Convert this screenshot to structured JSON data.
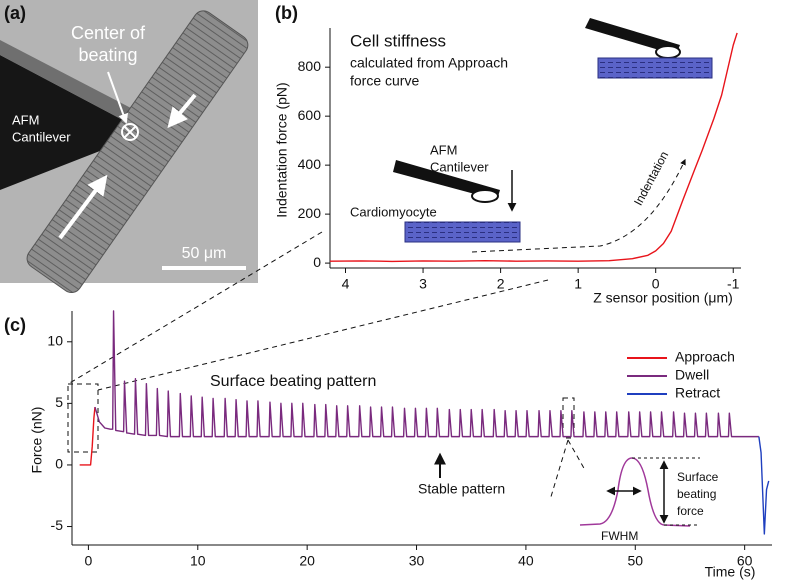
{
  "image_panel": {
    "label": "(a)",
    "center_label": [
      "Center of",
      "beating"
    ],
    "cantilever_label": [
      "AFM",
      "Cantilever"
    ],
    "scale_bar": "50 μm"
  },
  "chart_data": [
    {
      "label": "(b)",
      "type": "line",
      "title": "Cell stiffness",
      "subtitle": [
        "calculated from Approach",
        "force curve"
      ],
      "annotations": {
        "cantilever": [
          "AFM",
          "Cantilever"
        ],
        "cell": "Cardiomyocyte",
        "arrow": "Indentation"
      },
      "x_label": "Z sensor position (μm)",
      "y_label": "Indentation force (pN)",
      "xlim": [
        4.2,
        -1.1
      ],
      "xticks": [
        4,
        3,
        2,
        1,
        0,
        -1
      ],
      "ylim": [
        -20,
        960
      ],
      "yticks": [
        0,
        200,
        400,
        600,
        800
      ],
      "series": [
        {
          "color": "#e8141b",
          "x": [
            4.2,
            3.8,
            3.4,
            3.0,
            2.6,
            2.2,
            1.8,
            1.4,
            1.0,
            0.6,
            0.3,
            0.1,
            0,
            -0.1,
            -0.2,
            -0.35,
            -0.5,
            -0.6,
            -0.75,
            -0.85,
            -1.0,
            -1.05
          ],
          "values": [
            8,
            9,
            7,
            9,
            8,
            10,
            8,
            9,
            8,
            10,
            18,
            32,
            50,
            80,
            130,
            257,
            380,
            461,
            590,
            686,
            890,
            940
          ]
        }
      ]
    },
    {
      "label": "(c)",
      "type": "line",
      "title": "Surface beating pattern",
      "annotations": {
        "stable": "Stable pattern",
        "fwhm": "FWHM",
        "force": [
          "Surface",
          "beating",
          "force"
        ]
      },
      "x_label": "Time (s)",
      "y_label": "Force (nN)",
      "xlim": [
        -1.5,
        62.5
      ],
      "xticks": [
        0,
        10,
        20,
        30,
        40,
        50,
        60
      ],
      "ylim": [
        -6.5,
        12.5
      ],
      "yticks": [
        -5,
        0,
        5,
        10
      ],
      "legend": "upper right",
      "series": [
        {
          "name": "Approach",
          "color": "#e8141b",
          "x": [
            -0.8,
            0.2,
            0.35,
            0.5,
            0.6
          ],
          "values": [
            0,
            0,
            1.5,
            3.8,
            4.7
          ]
        },
        {
          "name": "Dwell",
          "color": "#7a2a7e",
          "x": [
            0.6,
            1.0,
            1.5,
            2.0,
            2.22,
            2.3,
            2.5,
            3.22,
            3.3,
            3.5,
            4.22,
            4.3,
            4.5,
            5.22,
            5.3,
            5.5,
            6.22,
            6.3,
            6.5,
            7.22,
            7.3,
            7.5,
            8.32,
            8.4,
            8.6,
            9.32,
            9.4,
            9.6,
            10.32,
            10.4,
            10.6,
            11.32,
            11.4,
            11.6,
            12.42,
            12.5,
            12.7,
            13.42,
            13.5,
            13.7,
            14.42,
            14.5,
            14.7,
            15.42,
            15.5,
            15.7,
            16.52,
            16.6,
            16.8,
            17.52,
            17.6,
            17.8,
            18.52,
            18.6,
            18.8,
            19.52,
            19.6,
            19.8,
            20.62,
            20.7,
            20.9,
            21.62,
            21.7,
            21.9,
            22.62,
            22.7,
            22.9,
            23.62,
            23.7,
            23.9,
            24.72,
            24.8,
            25.0,
            25.72,
            25.8,
            26.0,
            26.72,
            26.8,
            27.0,
            27.72,
            27.8,
            28.0,
            28.82,
            28.9,
            29.1,
            29.82,
            29.9,
            30.1,
            30.82,
            30.9,
            31.1,
            31.82,
            31.9,
            32.1,
            32.92,
            33.0,
            33.2,
            33.92,
            34.0,
            34.2,
            34.92,
            35.0,
            35.2,
            35.92,
            36.0,
            36.2,
            37.02,
            37.1,
            37.3,
            38.02,
            38.1,
            38.3,
            39.02,
            39.1,
            39.3,
            40.02,
            40.1,
            40.3,
            41.12,
            41.2,
            41.4,
            42.12,
            42.2,
            42.4,
            43.12,
            43.2,
            43.4,
            44.12,
            44.2,
            44.4,
            45.22,
            45.3,
            45.5,
            46.22,
            46.3,
            46.5,
            47.22,
            47.3,
            47.5,
            48.22,
            48.3,
            48.5,
            49.32,
            49.4,
            49.6,
            50.32,
            50.4,
            50.6,
            51.32,
            51.4,
            51.6,
            52.32,
            52.4,
            52.6,
            53.42,
            53.5,
            53.7,
            54.42,
            54.5,
            54.7,
            55.42,
            55.5,
            55.7,
            56.42,
            56.5,
            56.7,
            57.52,
            57.6,
            57.8,
            58.52,
            58.6,
            58.8,
            61.3
          ],
          "values": [
            4.7,
            3.5,
            3.0,
            2.9,
            2.9,
            12.5,
            2.8,
            2.7,
            6.8,
            2.6,
            2.5,
            7.0,
            2.5,
            2.4,
            6.6,
            2.4,
            2.4,
            6.2,
            2.4,
            2.3,
            6.0,
            2.3,
            2.3,
            5.8,
            2.3,
            2.3,
            5.6,
            2.3,
            2.3,
            5.5,
            2.3,
            2.3,
            5.4,
            2.3,
            2.3,
            5.4,
            2.3,
            2.3,
            5.3,
            2.3,
            2.3,
            5.2,
            2.3,
            2.3,
            5.2,
            2.3,
            2.3,
            5.1,
            2.3,
            2.3,
            5.0,
            2.3,
            2.3,
            5.0,
            2.3,
            2.3,
            5.0,
            2.3,
            2.3,
            4.9,
            2.3,
            2.3,
            4.9,
            2.3,
            2.3,
            4.8,
            2.3,
            2.3,
            4.8,
            2.3,
            2.3,
            4.8,
            2.3,
            2.3,
            4.7,
            2.3,
            2.3,
            4.7,
            2.3,
            2.3,
            4.7,
            2.3,
            2.3,
            4.6,
            2.3,
            2.3,
            4.6,
            2.3,
            2.3,
            4.6,
            2.3,
            2.3,
            4.6,
            2.3,
            2.3,
            4.5,
            2.3,
            2.3,
            4.5,
            2.3,
            2.3,
            4.5,
            2.3,
            2.3,
            4.5,
            2.3,
            2.3,
            4.5,
            2.3,
            2.3,
            4.4,
            2.3,
            2.3,
            4.4,
            2.3,
            2.3,
            4.4,
            2.3,
            2.3,
            4.4,
            2.3,
            2.3,
            4.4,
            2.3,
            2.3,
            4.4,
            2.3,
            2.3,
            4.4,
            2.3,
            2.3,
            4.3,
            2.3,
            2.3,
            4.3,
            2.3,
            2.3,
            4.3,
            2.3,
            2.3,
            4.3,
            2.3,
            2.3,
            4.3,
            2.3,
            2.3,
            4.3,
            2.3,
            2.3,
            4.3,
            2.3,
            2.3,
            4.3,
            2.3,
            2.3,
            4.3,
            2.3,
            2.3,
            4.2,
            2.3,
            2.3,
            4.2,
            2.3,
            2.3,
            4.2,
            2.3,
            2.3,
            4.2,
            2.3,
            2.3,
            4.2,
            2.3,
            2.3
          ]
        },
        {
          "name": "Retract",
          "color": "#1f3fbf",
          "x": [
            61.3,
            61.5,
            61.8,
            62.0,
            62.2
          ],
          "values": [
            2.3,
            1.0,
            -5.6,
            -2.0,
            -1.3
          ]
        }
      ]
    }
  ]
}
